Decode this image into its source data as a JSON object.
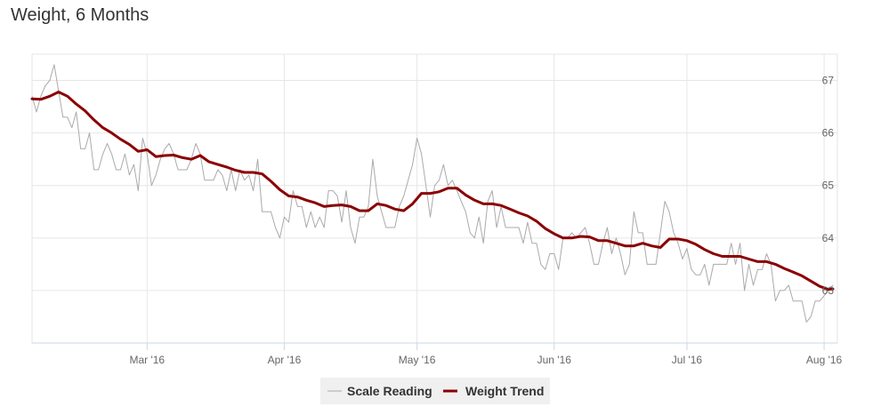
{
  "chart_data": {
    "type": "line",
    "title": "Weight, 6 Months",
    "xlabel": "",
    "ylabel": "",
    "x_start": "2016-02-04",
    "x_end": "2016-08-03",
    "x_ticks": [
      {
        "label": "Mar '16",
        "date": "2016-03-01"
      },
      {
        "label": "Apr '16",
        "date": "2016-04-01"
      },
      {
        "label": "May '16",
        "date": "2016-05-01"
      },
      {
        "label": "Jun '16",
        "date": "2016-06-01"
      },
      {
        "label": "Jul '16",
        "date": "2016-07-01"
      },
      {
        "label": "Aug '16",
        "date": "2016-08-01"
      }
    ],
    "y_ticks": [
      63,
      64,
      65,
      66,
      67
    ],
    "ylim": [
      62,
      67.5
    ],
    "grid": true,
    "legend_position": "bottom-center",
    "series": [
      {
        "name": "Scale Reading",
        "color": "#aaaaaa",
        "points": [
          [
            "2016-02-04",
            66.7
          ],
          [
            "2016-02-05",
            66.4
          ],
          [
            "2016-02-06",
            66.7
          ],
          [
            "2016-02-07",
            66.9
          ],
          [
            "2016-02-08",
            67.0
          ],
          [
            "2016-02-09",
            67.3
          ],
          [
            "2016-02-10",
            66.8
          ],
          [
            "2016-02-11",
            66.3
          ],
          [
            "2016-02-12",
            66.3
          ],
          [
            "2016-02-13",
            66.1
          ],
          [
            "2016-02-14",
            66.4
          ],
          [
            "2016-02-15",
            65.7
          ],
          [
            "2016-02-16",
            65.7
          ],
          [
            "2016-02-17",
            66.0
          ],
          [
            "2016-02-18",
            65.3
          ],
          [
            "2016-02-19",
            65.3
          ],
          [
            "2016-02-20",
            65.6
          ],
          [
            "2016-02-21",
            65.8
          ],
          [
            "2016-02-22",
            65.6
          ],
          [
            "2016-02-23",
            65.3
          ],
          [
            "2016-02-24",
            65.3
          ],
          [
            "2016-02-25",
            65.6
          ],
          [
            "2016-02-26",
            65.2
          ],
          [
            "2016-02-27",
            65.4
          ],
          [
            "2016-02-28",
            64.9
          ],
          [
            "2016-02-29",
            65.9
          ],
          [
            "2016-03-01",
            65.6
          ],
          [
            "2016-03-02",
            65.0
          ],
          [
            "2016-03-03",
            65.2
          ],
          [
            "2016-03-04",
            65.5
          ],
          [
            "2016-03-05",
            65.7
          ],
          [
            "2016-03-06",
            65.8
          ],
          [
            "2016-03-07",
            65.6
          ],
          [
            "2016-03-08",
            65.3
          ],
          [
            "2016-03-09",
            65.3
          ],
          [
            "2016-03-10",
            65.3
          ],
          [
            "2016-03-11",
            65.5
          ],
          [
            "2016-03-12",
            65.8
          ],
          [
            "2016-03-13",
            65.6
          ],
          [
            "2016-03-14",
            65.1
          ],
          [
            "2016-03-15",
            65.1
          ],
          [
            "2016-03-16",
            65.1
          ],
          [
            "2016-03-17",
            65.3
          ],
          [
            "2016-03-18",
            65.2
          ],
          [
            "2016-03-19",
            64.9
          ],
          [
            "2016-03-20",
            65.3
          ],
          [
            "2016-03-21",
            64.9
          ],
          [
            "2016-03-22",
            65.3
          ],
          [
            "2016-03-23",
            65.1
          ],
          [
            "2016-03-24",
            65.2
          ],
          [
            "2016-03-25",
            64.9
          ],
          [
            "2016-03-26",
            65.5
          ],
          [
            "2016-03-27",
            64.5
          ],
          [
            "2016-03-28",
            64.5
          ],
          [
            "2016-03-29",
            64.5
          ],
          [
            "2016-03-30",
            64.2
          ],
          [
            "2016-03-31",
            64.0
          ],
          [
            "2016-04-01",
            64.4
          ],
          [
            "2016-04-02",
            64.3
          ],
          [
            "2016-04-03",
            64.9
          ],
          [
            "2016-04-04",
            64.6
          ],
          [
            "2016-04-05",
            64.6
          ],
          [
            "2016-04-06",
            64.2
          ],
          [
            "2016-04-07",
            64.5
          ],
          [
            "2016-04-08",
            64.2
          ],
          [
            "2016-04-09",
            64.4
          ],
          [
            "2016-04-10",
            64.2
          ],
          [
            "2016-04-11",
            64.9
          ],
          [
            "2016-04-12",
            64.9
          ],
          [
            "2016-04-13",
            64.8
          ],
          [
            "2016-04-14",
            64.3
          ],
          [
            "2016-04-15",
            64.9
          ],
          [
            "2016-04-16",
            64.2
          ],
          [
            "2016-04-17",
            63.9
          ],
          [
            "2016-04-18",
            64.4
          ],
          [
            "2016-04-19",
            64.4
          ],
          [
            "2016-04-20",
            64.6
          ],
          [
            "2016-04-21",
            65.5
          ],
          [
            "2016-04-22",
            64.8
          ],
          [
            "2016-04-23",
            64.5
          ],
          [
            "2016-04-24",
            64.2
          ],
          [
            "2016-04-25",
            64.2
          ],
          [
            "2016-04-26",
            64.2
          ],
          [
            "2016-04-27",
            64.6
          ],
          [
            "2016-04-28",
            64.8
          ],
          [
            "2016-04-29",
            65.1
          ],
          [
            "2016-04-30",
            65.4
          ],
          [
            "2016-05-01",
            65.9
          ],
          [
            "2016-05-02",
            65.6
          ],
          [
            "2016-05-03",
            65.0
          ],
          [
            "2016-05-04",
            64.4
          ],
          [
            "2016-05-05",
            65.0
          ],
          [
            "2016-05-06",
            65.1
          ],
          [
            "2016-05-07",
            65.4
          ],
          [
            "2016-05-08",
            65.0
          ],
          [
            "2016-05-09",
            65.1
          ],
          [
            "2016-05-10",
            64.9
          ],
          [
            "2016-05-11",
            64.7
          ],
          [
            "2016-05-12",
            64.5
          ],
          [
            "2016-05-13",
            64.1
          ],
          [
            "2016-05-14",
            64.0
          ],
          [
            "2016-05-15",
            64.4
          ],
          [
            "2016-05-16",
            63.9
          ],
          [
            "2016-05-17",
            64.7
          ],
          [
            "2016-05-18",
            64.9
          ],
          [
            "2016-05-19",
            64.2
          ],
          [
            "2016-05-20",
            64.6
          ],
          [
            "2016-05-21",
            64.2
          ],
          [
            "2016-05-22",
            64.2
          ],
          [
            "2016-05-23",
            64.2
          ],
          [
            "2016-05-24",
            64.2
          ],
          [
            "2016-05-25",
            63.9
          ],
          [
            "2016-05-26",
            64.3
          ],
          [
            "2016-05-27",
            63.9
          ],
          [
            "2016-05-28",
            63.9
          ],
          [
            "2016-05-29",
            63.5
          ],
          [
            "2016-05-30",
            63.4
          ],
          [
            "2016-05-31",
            63.7
          ],
          [
            "2016-06-01",
            63.7
          ],
          [
            "2016-06-02",
            63.4
          ],
          [
            "2016-06-03",
            64.0
          ],
          [
            "2016-06-04",
            64.0
          ],
          [
            "2016-06-05",
            64.1
          ],
          [
            "2016-06-06",
            64.0
          ],
          [
            "2016-06-07",
            64.1
          ],
          [
            "2016-06-08",
            64.2
          ],
          [
            "2016-06-09",
            63.9
          ],
          [
            "2016-06-10",
            63.5
          ],
          [
            "2016-06-11",
            63.5
          ],
          [
            "2016-06-12",
            63.9
          ],
          [
            "2016-06-13",
            64.2
          ],
          [
            "2016-06-14",
            63.7
          ],
          [
            "2016-06-15",
            64.0
          ],
          [
            "2016-06-16",
            63.7
          ],
          [
            "2016-06-17",
            63.3
          ],
          [
            "2016-06-18",
            63.5
          ],
          [
            "2016-06-19",
            64.5
          ],
          [
            "2016-06-20",
            64.1
          ],
          [
            "2016-06-21",
            64.1
          ],
          [
            "2016-06-22",
            63.5
          ],
          [
            "2016-06-23",
            63.5
          ],
          [
            "2016-06-24",
            63.5
          ],
          [
            "2016-06-25",
            64.1
          ],
          [
            "2016-06-26",
            64.7
          ],
          [
            "2016-06-27",
            64.5
          ],
          [
            "2016-06-28",
            64.1
          ],
          [
            "2016-06-29",
            63.9
          ],
          [
            "2016-06-30",
            63.6
          ],
          [
            "2016-07-01",
            63.8
          ],
          [
            "2016-07-02",
            63.4
          ],
          [
            "2016-07-03",
            63.3
          ],
          [
            "2016-07-04",
            63.3
          ],
          [
            "2016-07-05",
            63.5
          ],
          [
            "2016-07-06",
            63.1
          ],
          [
            "2016-07-07",
            63.5
          ],
          [
            "2016-07-08",
            63.5
          ],
          [
            "2016-07-09",
            63.5
          ],
          [
            "2016-07-10",
            63.5
          ],
          [
            "2016-07-11",
            63.9
          ],
          [
            "2016-07-12",
            63.5
          ],
          [
            "2016-07-13",
            63.9
          ],
          [
            "2016-07-14",
            63.0
          ],
          [
            "2016-07-15",
            63.5
          ],
          [
            "2016-07-16",
            63.1
          ],
          [
            "2016-07-17",
            63.4
          ],
          [
            "2016-07-18",
            63.4
          ],
          [
            "2016-07-19",
            63.7
          ],
          [
            "2016-07-20",
            63.5
          ],
          [
            "2016-07-21",
            62.8
          ],
          [
            "2016-07-22",
            63.0
          ],
          [
            "2016-07-23",
            63.0
          ],
          [
            "2016-07-24",
            63.1
          ],
          [
            "2016-07-25",
            62.8
          ],
          [
            "2016-07-26",
            62.8
          ],
          [
            "2016-07-27",
            62.8
          ],
          [
            "2016-07-28",
            62.4
          ],
          [
            "2016-07-29",
            62.5
          ],
          [
            "2016-07-30",
            62.8
          ],
          [
            "2016-07-31",
            62.8
          ],
          [
            "2016-08-01",
            62.9
          ],
          [
            "2016-08-02",
            63.0
          ],
          [
            "2016-08-03",
            63.1
          ]
        ]
      },
      {
        "name": "Weight Trend",
        "color": "#8b0000",
        "points": [
          [
            "2016-02-04",
            66.65
          ],
          [
            "2016-02-06",
            66.64
          ],
          [
            "2016-02-08",
            66.7
          ],
          [
            "2016-02-10",
            66.78
          ],
          [
            "2016-02-12",
            66.7
          ],
          [
            "2016-02-14",
            66.55
          ],
          [
            "2016-02-16",
            66.42
          ],
          [
            "2016-02-18",
            66.25
          ],
          [
            "2016-02-20",
            66.1
          ],
          [
            "2016-02-22",
            66.0
          ],
          [
            "2016-02-24",
            65.88
          ],
          [
            "2016-02-26",
            65.78
          ],
          [
            "2016-02-28",
            65.65
          ],
          [
            "2016-03-01",
            65.68
          ],
          [
            "2016-03-03",
            65.55
          ],
          [
            "2016-03-05",
            65.57
          ],
          [
            "2016-03-07",
            65.58
          ],
          [
            "2016-03-09",
            65.53
          ],
          [
            "2016-03-11",
            65.5
          ],
          [
            "2016-03-13",
            65.57
          ],
          [
            "2016-03-15",
            65.45
          ],
          [
            "2016-03-17",
            65.4
          ],
          [
            "2016-03-19",
            65.35
          ],
          [
            "2016-03-21",
            65.29
          ],
          [
            "2016-03-23",
            65.25
          ],
          [
            "2016-03-25",
            65.25
          ],
          [
            "2016-03-27",
            65.22
          ],
          [
            "2016-03-29",
            65.08
          ],
          [
            "2016-03-31",
            64.92
          ],
          [
            "2016-04-02",
            64.8
          ],
          [
            "2016-04-04",
            64.78
          ],
          [
            "2016-04-06",
            64.72
          ],
          [
            "2016-04-08",
            64.67
          ],
          [
            "2016-04-10",
            64.6
          ],
          [
            "2016-04-12",
            64.62
          ],
          [
            "2016-04-14",
            64.63
          ],
          [
            "2016-04-16",
            64.6
          ],
          [
            "2016-04-18",
            64.52
          ],
          [
            "2016-04-20",
            64.52
          ],
          [
            "2016-04-22",
            64.65
          ],
          [
            "2016-04-24",
            64.62
          ],
          [
            "2016-04-26",
            64.55
          ],
          [
            "2016-04-28",
            64.52
          ],
          [
            "2016-04-30",
            64.65
          ],
          [
            "2016-05-02",
            64.85
          ],
          [
            "2016-05-04",
            64.85
          ],
          [
            "2016-05-06",
            64.88
          ],
          [
            "2016-05-08",
            64.95
          ],
          [
            "2016-05-10",
            64.95
          ],
          [
            "2016-05-12",
            64.82
          ],
          [
            "2016-05-14",
            64.72
          ],
          [
            "2016-05-16",
            64.65
          ],
          [
            "2016-05-18",
            64.65
          ],
          [
            "2016-05-20",
            64.62
          ],
          [
            "2016-05-22",
            64.55
          ],
          [
            "2016-05-24",
            64.48
          ],
          [
            "2016-05-26",
            64.42
          ],
          [
            "2016-05-28",
            64.32
          ],
          [
            "2016-05-30",
            64.18
          ],
          [
            "2016-06-01",
            64.08
          ],
          [
            "2016-06-03",
            64.0
          ],
          [
            "2016-06-05",
            64.0
          ],
          [
            "2016-06-07",
            64.03
          ],
          [
            "2016-06-09",
            64.02
          ],
          [
            "2016-06-11",
            63.95
          ],
          [
            "2016-06-13",
            63.95
          ],
          [
            "2016-06-15",
            63.9
          ],
          [
            "2016-06-17",
            63.85
          ],
          [
            "2016-06-19",
            63.85
          ],
          [
            "2016-06-21",
            63.9
          ],
          [
            "2016-06-23",
            63.85
          ],
          [
            "2016-06-25",
            63.82
          ],
          [
            "2016-06-27",
            63.98
          ],
          [
            "2016-06-29",
            63.98
          ],
          [
            "2016-07-01",
            63.95
          ],
          [
            "2016-07-03",
            63.88
          ],
          [
            "2016-07-05",
            63.78
          ],
          [
            "2016-07-07",
            63.7
          ],
          [
            "2016-07-09",
            63.65
          ],
          [
            "2016-07-11",
            63.65
          ],
          [
            "2016-07-13",
            63.65
          ],
          [
            "2016-07-15",
            63.6
          ],
          [
            "2016-07-17",
            63.55
          ],
          [
            "2016-07-19",
            63.55
          ],
          [
            "2016-07-21",
            63.5
          ],
          [
            "2016-07-23",
            63.42
          ],
          [
            "2016-07-25",
            63.35
          ],
          [
            "2016-07-27",
            63.28
          ],
          [
            "2016-07-29",
            63.18
          ],
          [
            "2016-07-31",
            63.08
          ],
          [
            "2016-08-02",
            63.02
          ],
          [
            "2016-08-03",
            63.03
          ]
        ]
      }
    ]
  }
}
